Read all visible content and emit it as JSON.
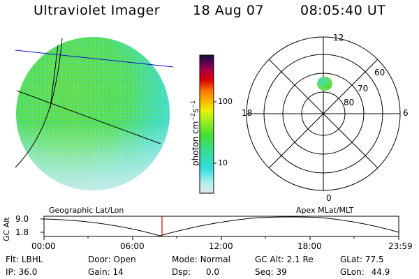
{
  "header": {
    "instrument": "Ultraviolet Imager",
    "date": "18 Aug 07",
    "time": "08:05:40 UT"
  },
  "colorbar": {
    "unit_label": "photon cm",
    "unit_sup1": "−2",
    "unit_mid": "s",
    "unit_sup2": "−1",
    "ticks": [
      "100",
      "10"
    ]
  },
  "polar": {
    "mlt_labels": {
      "top": "12",
      "left": "18",
      "right": "6",
      "bottom": "0"
    },
    "lat_labels": [
      "60",
      "70",
      "80"
    ]
  },
  "timeline": {
    "left_title": "Geographic Lat/Lon",
    "right_title": "Apex MLat/MLT",
    "axis_title": "GC Alt",
    "y_top": "9.0",
    "y_bottom": "1.8",
    "x_ticks": [
      "00:00",
      "06:00",
      "12:00",
      "18:00",
      "23:59"
    ]
  },
  "info": {
    "filter": {
      "label": "Flt:",
      "value": "LBHL"
    },
    "ip": {
      "label": "IP:",
      "value": "36.0"
    },
    "door": {
      "label": "Door:",
      "value": "Open"
    },
    "gain": {
      "label": "Gain:",
      "value": "14"
    },
    "mode": {
      "label": "Mode:",
      "value": "Normal"
    },
    "dsp": {
      "label": "Dsp:",
      "value": "0.0"
    },
    "gc_alt": {
      "label": "GC Alt:",
      "value": "2.1 Re"
    },
    "seq": {
      "label": "Seq:",
      "value": "39"
    },
    "glat": {
      "label": "GLat:",
      "value": "77.5"
    },
    "glon": {
      "label": "GLon:",
      "value": "44.9"
    }
  },
  "colors": {
    "disk_green": "#55dd44",
    "disk_cyan": "#44dddd",
    "marker_red": "#dd0000",
    "line_blue": "#0000cc"
  }
}
